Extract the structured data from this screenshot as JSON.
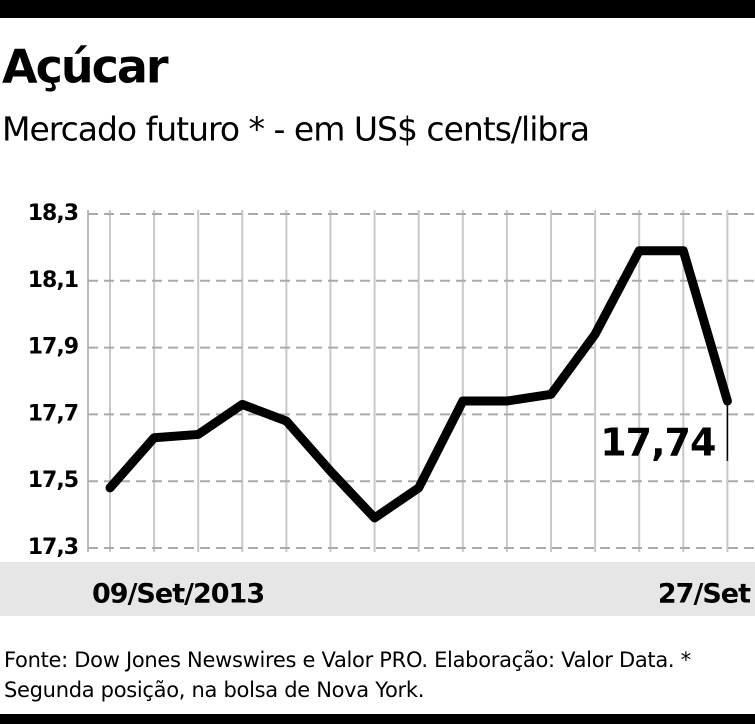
{
  "chart_data": {
    "type": "line",
    "title": "Açúcar",
    "subtitle": "Mercado futuro * - em US$ cents/libra",
    "categories": [
      "09/Set/2013",
      null,
      null,
      null,
      null,
      null,
      null,
      null,
      null,
      null,
      null,
      null,
      null,
      null,
      "27/Set"
    ],
    "series": [
      {
        "name": null,
        "color": "#000000",
        "values": [
          17.48,
          17.63,
          17.64,
          17.73,
          17.68,
          17.53,
          17.39,
          17.48,
          17.74,
          17.74,
          17.76,
          17.94,
          18.19,
          18.19,
          17.74
        ],
        "value_labels": [
          null,
          null,
          null,
          null,
          null,
          null,
          null,
          null,
          null,
          null,
          null,
          null,
          null,
          null,
          "17,74"
        ]
      }
    ],
    "ylim": [
      17.3,
      18.3
    ],
    "yticks": [
      {
        "value": 17.3,
        "label": "17,3"
      },
      {
        "value": 17.5,
        "label": "17,5"
      },
      {
        "value": 17.7,
        "label": "17,7"
      },
      {
        "value": 17.9,
        "label": "17,9"
      },
      {
        "value": 18.1,
        "label": "18,1"
      },
      {
        "value": 18.3,
        "label": "18,3"
      }
    ],
    "grid": true,
    "source": "Fonte: Dow Jones Newswires e Valor PRO. Elaboração: Valor Data. * Segunda posição, na bolsa de Nova York."
  }
}
